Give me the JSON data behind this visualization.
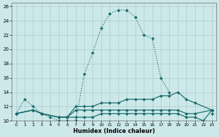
{
  "xlabel": "Humidex (Indice chaleur)",
  "background_color": "#cce8e8",
  "grid_color": "#aacccc",
  "line_color": "#1a6b6b",
  "xlim": [
    -0.5,
    23.5
  ],
  "ylim": [
    10,
    26.5
  ],
  "xticks": [
    0,
    1,
    2,
    3,
    4,
    5,
    6,
    7,
    8,
    9,
    10,
    11,
    12,
    13,
    14,
    15,
    16,
    17,
    18,
    19,
    20,
    21,
    22,
    23
  ],
  "yticks": [
    10,
    12,
    14,
    16,
    18,
    20,
    22,
    24,
    26
  ],
  "series": [
    {
      "style": "dotted",
      "x": [
        0,
        1,
        2,
        3,
        4,
        5,
        6,
        7,
        8,
        9,
        10,
        11,
        12,
        13,
        14,
        15,
        16,
        17,
        18,
        19,
        20,
        21,
        22,
        23
      ],
      "y": [
        11,
        13,
        12,
        11,
        10.5,
        10,
        10,
        10,
        16.5,
        19.5,
        23,
        25,
        25.5,
        25.5,
        24.5,
        22,
        21.5,
        16,
        14,
        null,
        null,
        null,
        null,
        11
      ]
    },
    {
      "style": "solid",
      "x": [
        0,
        2,
        3,
        5,
        6,
        7,
        8,
        9,
        10,
        11,
        12,
        13,
        14,
        15,
        16,
        17,
        18,
        19,
        20,
        21,
        23
      ],
      "y": [
        11,
        11.5,
        11,
        10.5,
        10.5,
        12,
        12,
        12,
        12.5,
        12.5,
        12.5,
        13,
        13,
        13,
        13,
        13.5,
        13.5,
        14,
        13,
        12.5,
        11.5
      ]
    },
    {
      "style": "solid",
      "x": [
        0,
        2,
        3,
        5,
        6,
        7,
        8,
        9,
        10,
        11,
        12,
        13,
        14,
        15,
        16,
        17,
        18,
        19,
        20,
        21,
        23
      ],
      "y": [
        11,
        11.5,
        11,
        10.5,
        10.5,
        11.5,
        11.5,
        11.5,
        11.5,
        11.5,
        11.5,
        11.5,
        11.5,
        11.5,
        11.5,
        11.5,
        11.5,
        11.5,
        11,
        11,
        11.5
      ]
    },
    {
      "style": "solid",
      "x": [
        0,
        2,
        3,
        5,
        6,
        7,
        8,
        9,
        10,
        11,
        12,
        13,
        14,
        15,
        16,
        17,
        18,
        19,
        20,
        21,
        22,
        23
      ],
      "y": [
        11,
        11.5,
        11,
        10.5,
        10.5,
        10.5,
        10.5,
        10.5,
        11,
        11,
        11,
        11,
        11,
        11,
        11,
        11,
        11,
        11,
        10.5,
        10.5,
        10,
        11.5
      ]
    }
  ]
}
